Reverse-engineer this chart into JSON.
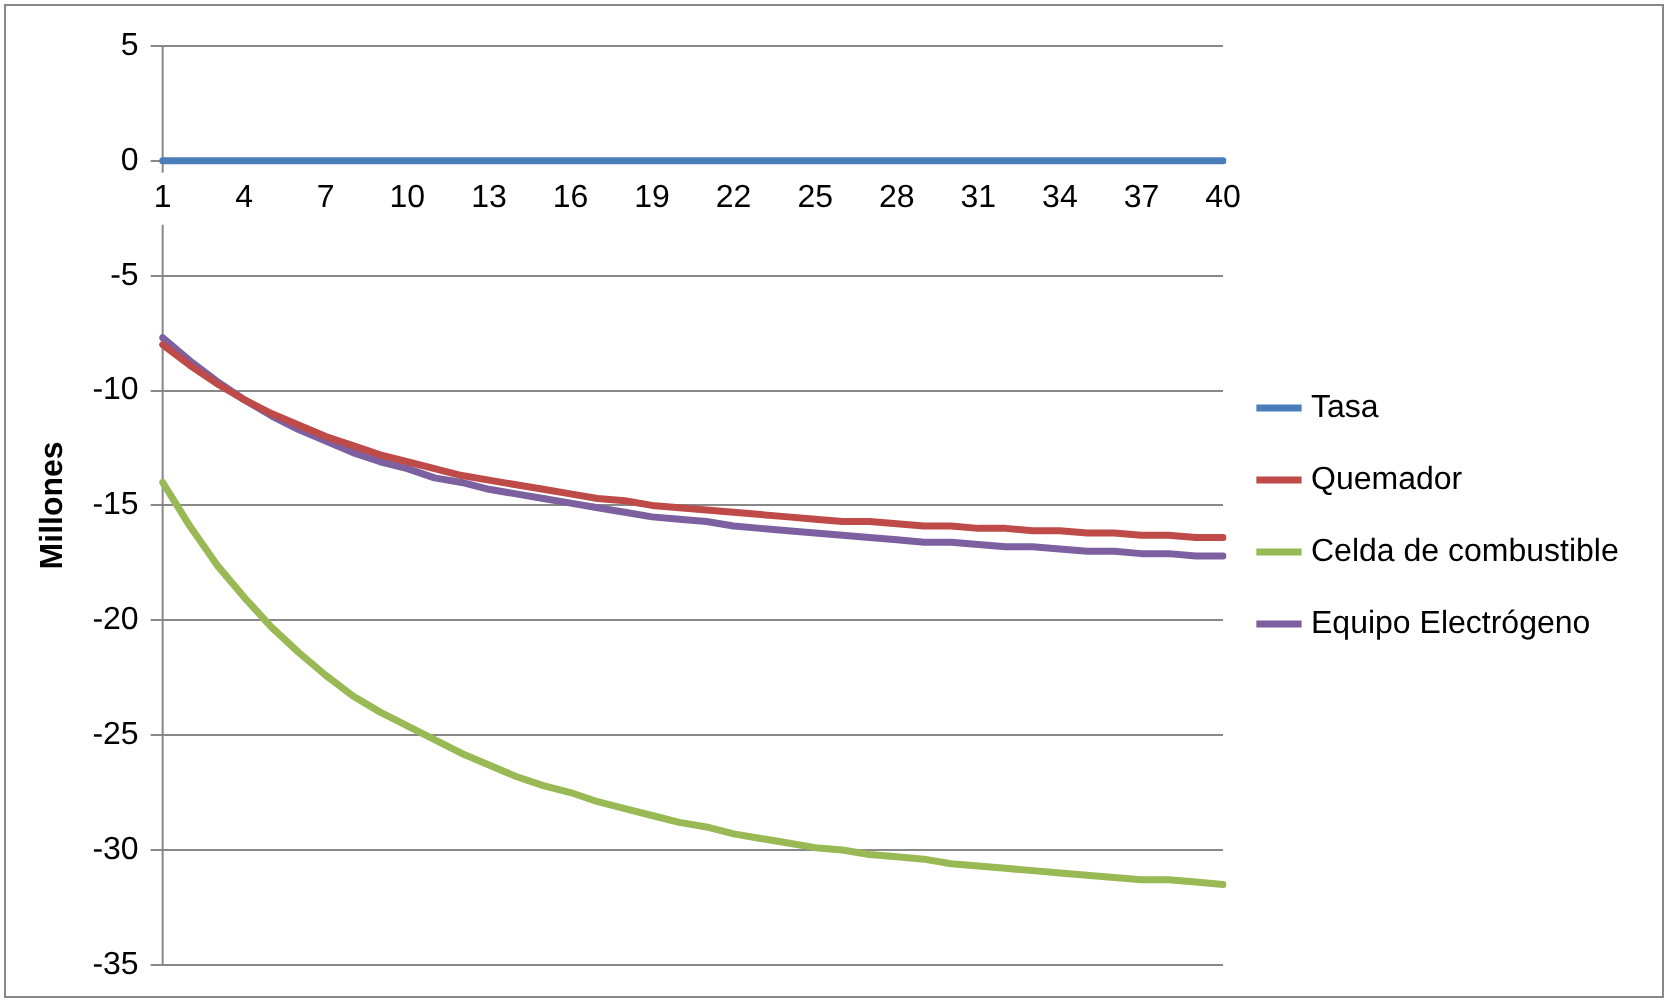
{
  "chart_data": {
    "type": "line",
    "ylabel": "Millones",
    "categories": [
      "1",
      null,
      null,
      "4",
      null,
      null,
      "7",
      null,
      null,
      "10",
      null,
      null,
      "13",
      null,
      null,
      "16",
      null,
      null,
      "19",
      null,
      null,
      "22",
      null,
      null,
      "25",
      null,
      null,
      "28",
      null,
      null,
      "31",
      null,
      null,
      "34",
      null,
      null,
      "37",
      null,
      null,
      "40"
    ],
    "series": [
      {
        "name": "Tasa",
        "color": "#4a7ebb",
        "values": [
          0,
          0,
          0,
          0,
          0,
          0,
          0,
          0,
          0,
          0,
          0,
          0,
          0,
          0,
          0,
          0,
          0,
          0,
          0,
          0,
          0,
          0,
          0,
          0,
          0,
          0,
          0,
          0,
          0,
          0,
          0,
          0,
          0,
          0,
          0,
          0,
          0,
          0,
          0,
          0
        ]
      },
      {
        "name": "Quemador",
        "color": "#be4b48",
        "values": [
          -8.0,
          -8.9,
          -9.7,
          -10.4,
          -11.0,
          -11.5,
          -12.0,
          -12.4,
          -12.8,
          -13.1,
          -13.4,
          -13.7,
          -13.9,
          -14.1,
          -14.3,
          -14.5,
          -14.7,
          -14.8,
          -15.0,
          -15.1,
          -15.2,
          -15.3,
          -15.4,
          -15.5,
          -15.6,
          -15.7,
          -15.7,
          -15.8,
          -15.9,
          -15.9,
          -16.0,
          -16.0,
          -16.1,
          -16.1,
          -16.2,
          -16.2,
          -16.3,
          -16.3,
          -16.4,
          -16.4
        ]
      },
      {
        "name": "Celda de combustible",
        "color": "#98b954",
        "values": [
          -14.0,
          -15.9,
          -17.6,
          -19.0,
          -20.3,
          -21.4,
          -22.4,
          -23.3,
          -24.0,
          -24.6,
          -25.2,
          -25.8,
          -26.3,
          -26.8,
          -27.2,
          -27.5,
          -27.9,
          -28.2,
          -28.5,
          -28.8,
          -29.0,
          -29.3,
          -29.5,
          -29.7,
          -29.9,
          -30.0,
          -30.2,
          -30.3,
          -30.4,
          -30.6,
          -30.7,
          -30.8,
          -30.9,
          -31.0,
          -31.1,
          -31.2,
          -31.3,
          -31.3,
          -31.4,
          -31.5
        ]
      },
      {
        "name": "Equipo Electrógeno",
        "color": "#7d60a0",
        "values": [
          -7.7,
          -8.7,
          -9.6,
          -10.4,
          -11.1,
          -11.7,
          -12.2,
          -12.7,
          -13.1,
          -13.4,
          -13.8,
          -14.0,
          -14.3,
          -14.5,
          -14.7,
          -14.9,
          -15.1,
          -15.3,
          -15.5,
          -15.6,
          -15.7,
          -15.9,
          -16.0,
          -16.1,
          -16.2,
          -16.3,
          -16.4,
          -16.5,
          -16.6,
          -16.6,
          -16.7,
          -16.8,
          -16.8,
          -16.9,
          -17.0,
          -17.0,
          -17.1,
          -17.1,
          -17.2,
          -17.2
        ]
      }
    ],
    "ylim": [
      -35,
      5
    ],
    "yticks": [
      5,
      0,
      -5,
      -10,
      -15,
      -20,
      -25,
      -30,
      -35
    ],
    "grid": "y",
    "legend": "right",
    "marker": "none",
    "line_style": "solid"
  }
}
